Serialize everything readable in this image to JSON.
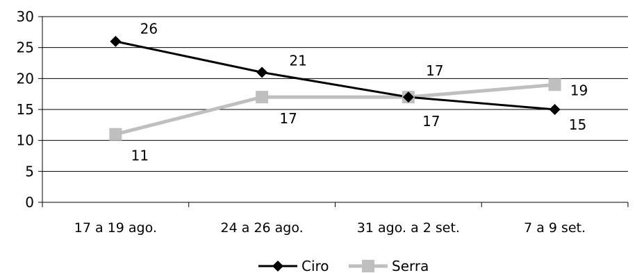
{
  "chart_data": {
    "type": "line",
    "title": "",
    "xlabel": "",
    "ylabel": "",
    "categories": [
      "17 a 19 ago.",
      "24 a 26 ago.",
      "31 ago. a 2 set.",
      "7 a 9 set."
    ],
    "ylim": [
      0,
      30
    ],
    "yticks": [
      0,
      5,
      10,
      15,
      20,
      25,
      30
    ],
    "grid": true,
    "legend_position": "bottom",
    "series": [
      {
        "name": "Ciro",
        "values": [
          26,
          21,
          17,
          15
        ],
        "labels": [
          "26",
          "21",
          "17",
          "15"
        ],
        "color": "#000000",
        "marker": "diamond"
      },
      {
        "name": "Serra",
        "values": [
          11,
          17,
          17,
          19
        ],
        "labels": [
          "11",
          "17",
          "17",
          "19"
        ],
        "color": "#bfbfbf",
        "marker": "square"
      }
    ]
  }
}
